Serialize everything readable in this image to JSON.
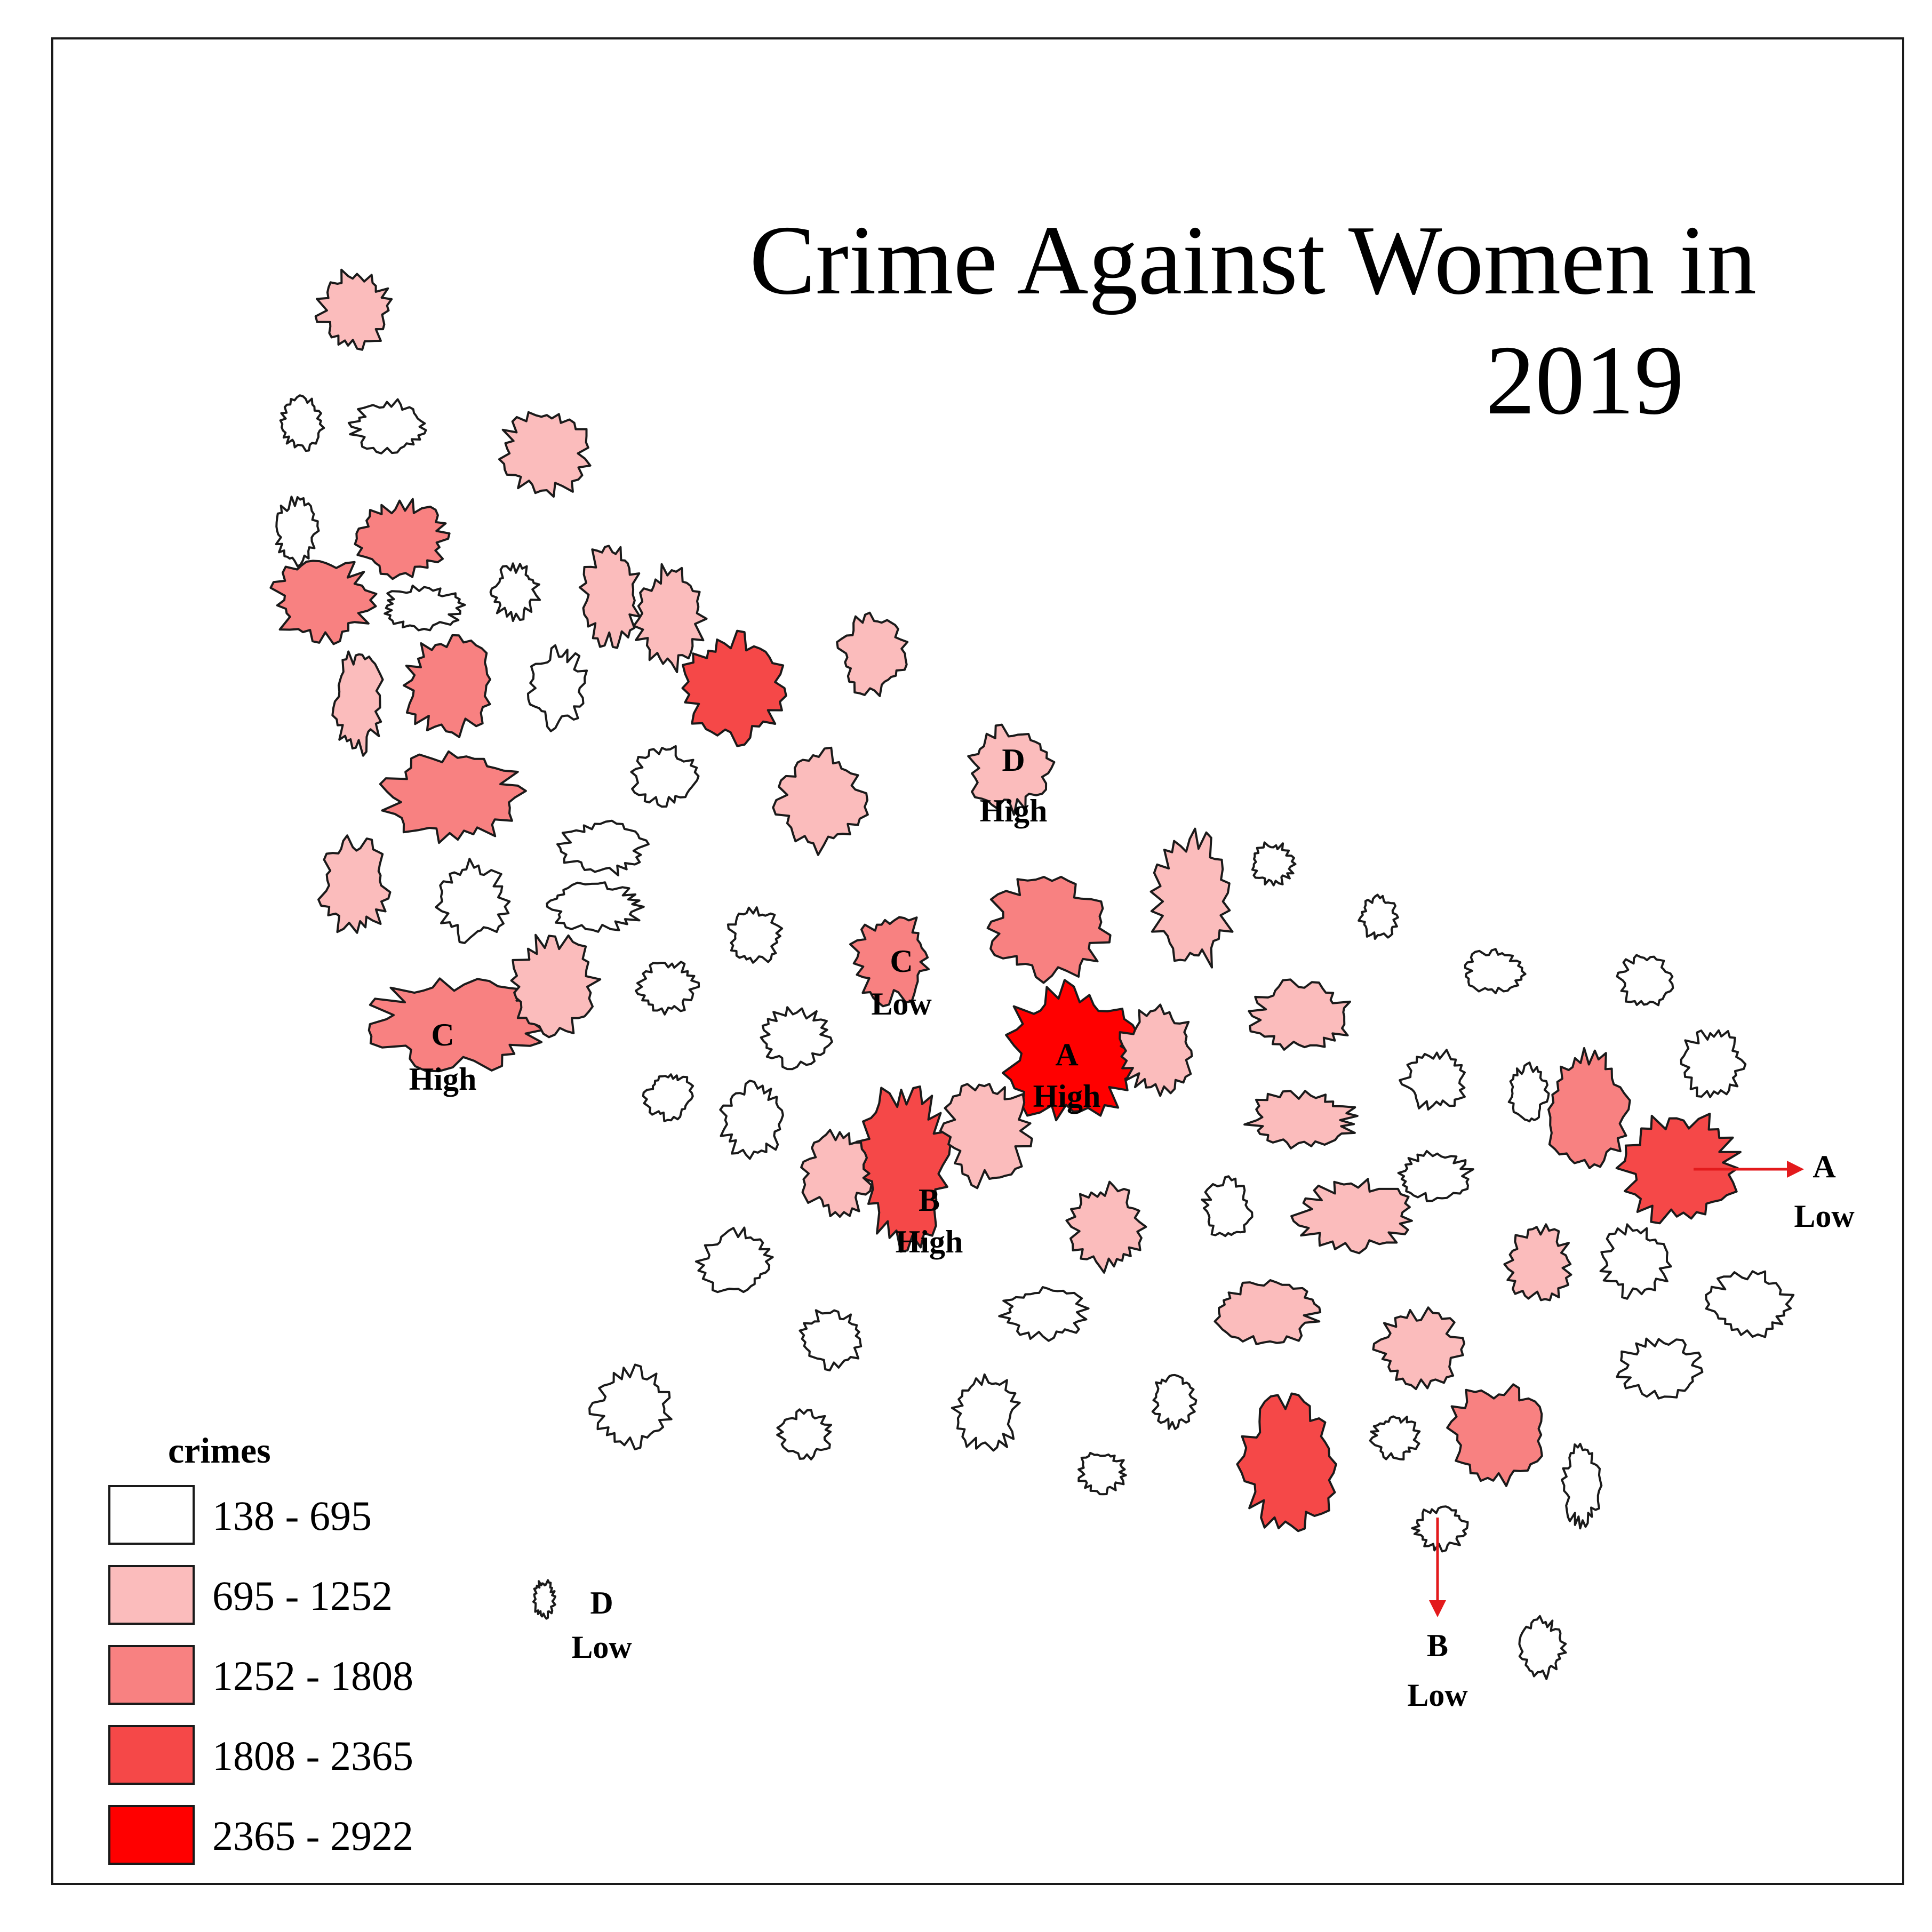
{
  "title_line1": "Crime Against Women in",
  "title_line2": "2019",
  "legend": {
    "title": "crimes",
    "classes": [
      {
        "label": "138 - 695",
        "color": "#ffffff"
      },
      {
        "label": "695 - 1252",
        "color": "#fbbcbc"
      },
      {
        "label": "1252 - 1808",
        "color": "#f88181"
      },
      {
        "label": "1808 - 2365",
        "color": "#f54848"
      },
      {
        "label": "2365 - 2922",
        "color": "#ff0000"
      }
    ]
  },
  "annotations": {
    "a_high": {
      "letter": "A",
      "level": "High"
    },
    "b_high": {
      "letter": "B",
      "level": "High"
    },
    "c_high": {
      "letter": "C",
      "level": "High"
    },
    "d_high": {
      "letter": "D",
      "level": "High"
    },
    "a_low": {
      "letter": "A",
      "level": "Low"
    },
    "b_low": {
      "letter": "B",
      "level": "Low"
    },
    "c_low": {
      "letter": "C",
      "level": "Low"
    },
    "d_low": {
      "letter": "D",
      "level": "Low"
    }
  }
}
